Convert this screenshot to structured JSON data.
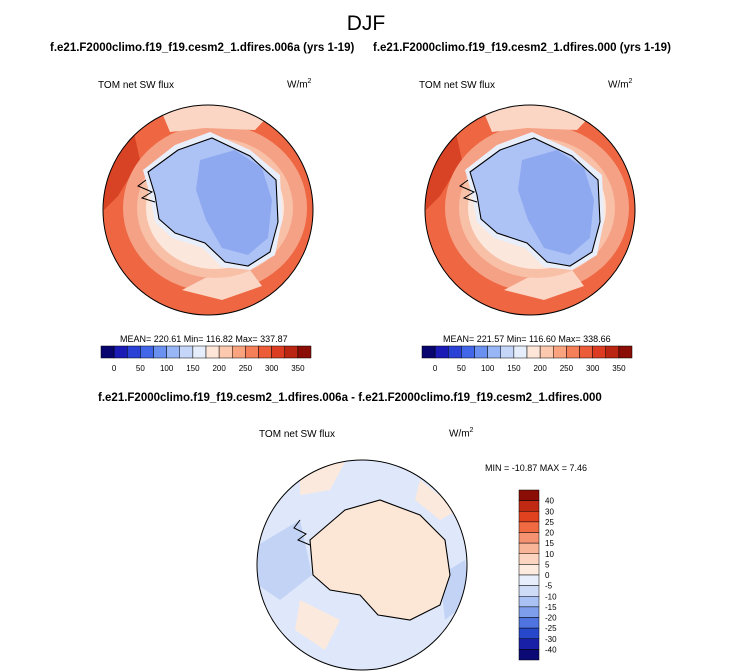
{
  "figure": {
    "season": "DJF",
    "variable_label": "TOM net SW flux",
    "units_base": "W/m",
    "units_exp": "2",
    "diff_title": "f.e21.F2000climo.f19_f19.cesm2_1.dfires.006a - f.e21.F2000climo.f19_f19.cesm2_1.dfires.000"
  },
  "panels": [
    {
      "case": "f.e21.F2000climo.f19_f19.cesm2_1.dfires.006a (yrs 1-19)",
      "stats": "MEAN= 220.61   Min= 116.82   Max= 337.87"
    },
    {
      "case": "f.e21.F2000climo.f19_f19.cesm2_1.dfires.000 (yrs 1-19)",
      "stats": "MEAN= 221.57   Min= 116.60   Max= 338.66"
    }
  ],
  "diff_stats": "MIN = -10.87  MAX =   7.46",
  "colorbar_abs": {
    "labels": [
      "0",
      "50",
      "100",
      "150",
      "200",
      "250",
      "300",
      "350"
    ],
    "colors": [
      "#08066e",
      "#1a1ab5",
      "#2a41d6",
      "#4266e8",
      "#6a90f0",
      "#98b6f5",
      "#c6d6f8",
      "#e6eefb",
      "#fde5d8",
      "#fcc8ae",
      "#f9a47f",
      "#f47f58",
      "#ec5c38",
      "#dc3d22",
      "#bb2612",
      "#8a0d06"
    ]
  },
  "colorbar_diff": {
    "labels": [
      "40",
      "30",
      "25",
      "20",
      "15",
      "10",
      "5",
      "0",
      "-5",
      "-10",
      "-15",
      "-20",
      "-25",
      "-30",
      "-40"
    ],
    "colors": [
      "#8a0d06",
      "#c02a13",
      "#e0421f",
      "#f06a42",
      "#f59271",
      "#f9b598",
      "#fcd4bf",
      "#fdebdf",
      "#e8eefb",
      "#cfdcf8",
      "#aac1f3",
      "#7e9eeb",
      "#4f74e0",
      "#2848cc",
      "#1820a8",
      "#0b0a74"
    ]
  }
}
